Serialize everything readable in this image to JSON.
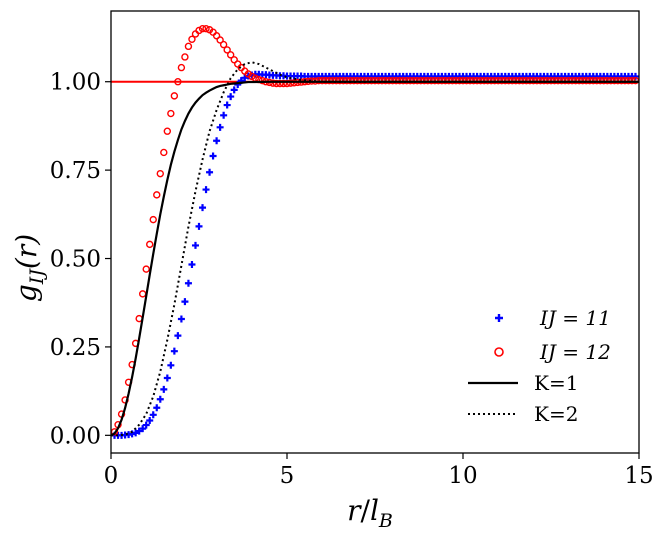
{
  "chart_data": {
    "type": "line",
    "title": "",
    "xlabel": {
      "main": "r",
      "slash": "/",
      "var": "l",
      "sub": "B"
    },
    "ylabel": {
      "main": "g",
      "sub": "IJ",
      "arg": "(r)"
    },
    "xlim": [
      0,
      15
    ],
    "ylim": [
      -0.05,
      1.2
    ],
    "xticks": [
      0,
      5,
      10,
      15
    ],
    "xtick_labels": [
      "0",
      "5",
      "10",
      "15"
    ],
    "yticks": [
      0.0,
      0.25,
      0.5,
      0.75,
      1.0
    ],
    "ytick_labels": [
      "0.00",
      "0.25",
      "0.50",
      "0.75",
      "1.00"
    ],
    "reference_line": {
      "y": 1.0,
      "color": "#ff0000"
    },
    "legend_position": "lower-right",
    "series": [
      {
        "name": "IJ = 11",
        "label_text": "IJ = 11",
        "marker": "plus",
        "color": "#0000ff",
        "x": [
          0.1,
          0.2,
          0.3,
          0.4,
          0.5,
          0.6,
          0.7,
          0.8,
          0.9,
          1.0,
          1.1,
          1.2,
          1.3,
          1.4,
          1.5,
          1.6,
          1.7,
          1.8,
          1.9,
          2.0,
          2.1,
          2.2,
          2.3,
          2.4,
          2.5,
          2.6,
          2.7,
          2.8,
          2.9,
          3.0,
          3.1,
          3.2,
          3.3,
          3.4,
          3.5,
          3.6,
          3.7,
          3.8,
          3.9,
          4.0,
          4.1,
          4.2,
          4.3,
          4.4,
          4.5,
          4.6,
          4.7,
          4.8,
          4.9,
          5.0,
          5.1,
          5.2,
          5.3,
          5.4,
          5.5,
          5.6,
          5.7,
          5.8,
          5.9,
          6.0,
          6.1,
          6.2,
          6.3,
          6.4,
          6.5,
          6.6,
          6.7,
          6.8,
          6.9,
          7.0,
          7.1,
          7.2,
          7.3,
          7.4,
          7.5,
          7.6,
          7.7,
          7.8,
          7.9,
          8.0,
          8.1,
          8.2,
          8.3,
          8.4,
          8.5,
          8.6,
          8.7,
          8.8,
          8.9,
          9.0,
          9.1,
          9.2,
          9.3,
          9.4,
          9.5,
          9.6,
          9.7,
          9.8,
          9.9,
          10.0,
          10.1,
          10.2,
          10.3,
          10.4,
          10.5,
          10.6,
          10.7,
          10.8,
          10.9,
          11.0,
          11.1,
          11.2,
          11.3,
          11.4,
          11.5,
          11.6,
          11.7,
          11.8,
          11.9,
          12.0,
          12.1,
          12.2,
          12.3,
          12.4,
          12.5,
          12.6,
          12.7,
          12.8,
          12.9,
          13.0,
          13.1,
          13.2,
          13.3,
          13.4,
          13.5,
          13.6,
          13.7,
          13.8,
          13.9,
          14.0,
          14.1,
          14.2,
          14.3,
          14.4,
          14.5,
          14.6,
          14.7,
          14.8,
          14.9
        ],
        "y": [
          0.0,
          0.0,
          0.0,
          0.001,
          0.002,
          0.004,
          0.007,
          0.012,
          0.019,
          0.029,
          0.042,
          0.058,
          0.078,
          0.102,
          0.13,
          0.162,
          0.198,
          0.238,
          0.282,
          0.329,
          0.378,
          0.43,
          0.483,
          0.537,
          0.591,
          0.644,
          0.695,
          0.744,
          0.79,
          0.833,
          0.871,
          0.905,
          0.934,
          0.958,
          0.977,
          0.992,
          1.003,
          1.011,
          1.016,
          1.019,
          1.021,
          1.021,
          1.02,
          1.02,
          1.019,
          1.018,
          1.018,
          1.017,
          1.017,
          1.016,
          1.016,
          1.016,
          1.016,
          1.016,
          1.015,
          1.015,
          1.015,
          1.015,
          1.015,
          1.015,
          1.015,
          1.015,
          1.015,
          1.015,
          1.015,
          1.015,
          1.015,
          1.015,
          1.015,
          1.015,
          1.015,
          1.015,
          1.015,
          1.015,
          1.015,
          1.015,
          1.015,
          1.015,
          1.015,
          1.015,
          1.015,
          1.015,
          1.015,
          1.015,
          1.015,
          1.015,
          1.015,
          1.015,
          1.015,
          1.015,
          1.015,
          1.015,
          1.015,
          1.015,
          1.015,
          1.015,
          1.015,
          1.015,
          1.015,
          1.015,
          1.015,
          1.015,
          1.015,
          1.015,
          1.015,
          1.015,
          1.015,
          1.015,
          1.015,
          1.015,
          1.015,
          1.015,
          1.015,
          1.015,
          1.015,
          1.015,
          1.015,
          1.015,
          1.015,
          1.015,
          1.015,
          1.015,
          1.015,
          1.015,
          1.015,
          1.015,
          1.015,
          1.015,
          1.015,
          1.015,
          1.015,
          1.015,
          1.015,
          1.015,
          1.015,
          1.015,
          1.015,
          1.015,
          1.015,
          1.015,
          1.015,
          1.015,
          1.015,
          1.015,
          1.015,
          1.015,
          1.015,
          1.015,
          1.015
        ]
      },
      {
        "name": "IJ = 12",
        "label_text": "IJ = 12",
        "marker": "circle",
        "color": "#ff0000",
        "x": [
          0.1,
          0.2,
          0.3,
          0.4,
          0.5,
          0.6,
          0.7,
          0.8,
          0.9,
          1.0,
          1.1,
          1.2,
          1.3,
          1.4,
          1.5,
          1.6,
          1.7,
          1.8,
          1.9,
          2.0,
          2.1,
          2.2,
          2.3,
          2.4,
          2.5,
          2.6,
          2.7,
          2.8,
          2.9,
          3.0,
          3.1,
          3.2,
          3.3,
          3.4,
          3.5,
          3.6,
          3.7,
          3.8,
          3.9,
          4.0,
          4.1,
          4.2,
          4.3,
          4.4,
          4.5,
          4.6,
          4.7,
          4.8,
          4.9,
          5.0,
          5.1,
          5.2,
          5.3,
          5.4,
          5.5,
          5.6,
          5.7,
          5.8,
          5.9,
          6.0,
          6.1,
          6.2,
          6.3,
          6.4,
          6.5,
          6.6,
          6.7,
          6.8,
          6.9,
          7.0,
          7.1,
          7.2,
          7.3,
          7.4,
          7.5,
          7.6,
          7.7,
          7.8,
          7.9,
          8.0,
          8.1,
          8.2,
          8.3,
          8.4,
          8.5,
          8.6,
          8.7,
          8.8,
          8.9,
          9.0,
          9.1,
          9.2,
          9.3,
          9.4,
          9.5,
          9.6,
          9.7,
          9.8,
          9.9,
          10.0,
          10.1,
          10.2,
          10.3,
          10.4,
          10.5,
          10.6,
          10.7,
          10.8,
          10.9,
          11.0,
          11.1,
          11.2,
          11.3,
          11.4,
          11.5,
          11.6,
          11.7,
          11.8,
          11.9,
          12.0,
          12.1,
          12.2,
          12.3,
          12.4,
          12.5,
          12.6,
          12.7,
          12.8,
          12.9,
          13.0,
          13.1,
          13.2,
          13.3,
          13.4,
          13.5,
          13.6,
          13.7,
          13.8,
          13.9,
          14.0,
          14.1,
          14.2,
          14.3,
          14.4,
          14.5,
          14.6,
          14.7,
          14.8,
          14.9
        ],
        "y": [
          0.01,
          0.03,
          0.06,
          0.1,
          0.15,
          0.2,
          0.26,
          0.33,
          0.4,
          0.47,
          0.54,
          0.61,
          0.68,
          0.74,
          0.8,
          0.86,
          0.91,
          0.96,
          1.0,
          1.04,
          1.07,
          1.1,
          1.12,
          1.135,
          1.145,
          1.15,
          1.15,
          1.147,
          1.14,
          1.13,
          1.118,
          1.105,
          1.09,
          1.076,
          1.062,
          1.05,
          1.04,
          1.03,
          1.022,
          1.015,
          1.01,
          1.006,
          1.003,
          1.0,
          0.998,
          0.996,
          0.995,
          0.995,
          0.995,
          0.995,
          0.996,
          0.997,
          0.998,
          0.999,
          1.0,
          1.001,
          1.002,
          1.002,
          1.003,
          1.003,
          1.003,
          1.003,
          1.003,
          1.003,
          1.003,
          1.003,
          1.003,
          1.003,
          1.003,
          1.003,
          1.003,
          1.003,
          1.003,
          1.003,
          1.003,
          1.003,
          1.003,
          1.003,
          1.003,
          1.003,
          1.003,
          1.003,
          1.003,
          1.003,
          1.003,
          1.003,
          1.003,
          1.003,
          1.003,
          1.003,
          1.003,
          1.003,
          1.003,
          1.003,
          1.003,
          1.003,
          1.003,
          1.003,
          1.003,
          1.003,
          1.003,
          1.003,
          1.003,
          1.003,
          1.003,
          1.003,
          1.003,
          1.003,
          1.003,
          1.003,
          1.003,
          1.003,
          1.003,
          1.003,
          1.003,
          1.003,
          1.003,
          1.003,
          1.003,
          1.003,
          1.003,
          1.003,
          1.003,
          1.003,
          1.003,
          1.003,
          1.003,
          1.003,
          1.003,
          1.003,
          1.003,
          1.003,
          1.003,
          1.003,
          1.003,
          1.003,
          1.003,
          1.003,
          1.003,
          1.003,
          1.003,
          1.003,
          1.003,
          1.003,
          1.003,
          1.003,
          1.003,
          1.003,
          1.003
        ]
      },
      {
        "name": "K=1",
        "label_text": "K=1",
        "line": "solid",
        "color": "#000000",
        "x": [
          0.0,
          0.1,
          0.2,
          0.3,
          0.4,
          0.5,
          0.6,
          0.7,
          0.8,
          0.9,
          1.0,
          1.1,
          1.2,
          1.3,
          1.4,
          1.5,
          1.6,
          1.7,
          1.8,
          1.9,
          2.0,
          2.1,
          2.2,
          2.3,
          2.4,
          2.5,
          2.6,
          2.7,
          2.8,
          2.9,
          3.0,
          3.1,
          3.2,
          3.3,
          3.4,
          3.5,
          3.6,
          3.7,
          3.8,
          3.9,
          4.0,
          4.5,
          5.0,
          6.0,
          8.0,
          10.0,
          12.0,
          15.0
        ],
        "y": [
          0.0,
          0.005,
          0.02,
          0.044,
          0.077,
          0.118,
          0.165,
          0.217,
          0.274,
          0.333,
          0.393,
          0.454,
          0.513,
          0.57,
          0.625,
          0.675,
          0.722,
          0.765,
          0.802,
          0.835,
          0.865,
          0.889,
          0.91,
          0.927,
          0.941,
          0.952,
          0.962,
          0.969,
          0.975,
          0.98,
          0.985,
          0.988,
          0.99,
          0.992,
          0.994,
          0.995,
          0.996,
          0.997,
          0.998,
          0.999,
          0.999,
          1.0,
          1.0,
          1.0,
          1.0,
          1.0,
          1.0,
          1.0
        ]
      },
      {
        "name": "K=2",
        "label_text": "K=2",
        "line": "dotted",
        "color": "#000000",
        "x": [
          0.0,
          0.2,
          0.4,
          0.6,
          0.8,
          1.0,
          1.2,
          1.4,
          1.6,
          1.8,
          2.0,
          2.2,
          2.4,
          2.6,
          2.8,
          3.0,
          3.2,
          3.4,
          3.6,
          3.8,
          4.0,
          4.2,
          4.4,
          4.6,
          4.8,
          5.0,
          5.5,
          6.0,
          7.0,
          8.0,
          10.0,
          12.0,
          15.0
        ],
        "y": [
          0.0,
          0.0,
          0.002,
          0.01,
          0.03,
          0.06,
          0.11,
          0.18,
          0.27,
          0.37,
          0.48,
          0.59,
          0.69,
          0.78,
          0.86,
          0.92,
          0.97,
          1.01,
          1.035,
          1.05,
          1.055,
          1.05,
          1.04,
          1.03,
          1.02,
          1.012,
          1.004,
          1.0,
          0.999,
          1.0,
          1.0,
          1.0,
          1.0
        ]
      }
    ]
  }
}
